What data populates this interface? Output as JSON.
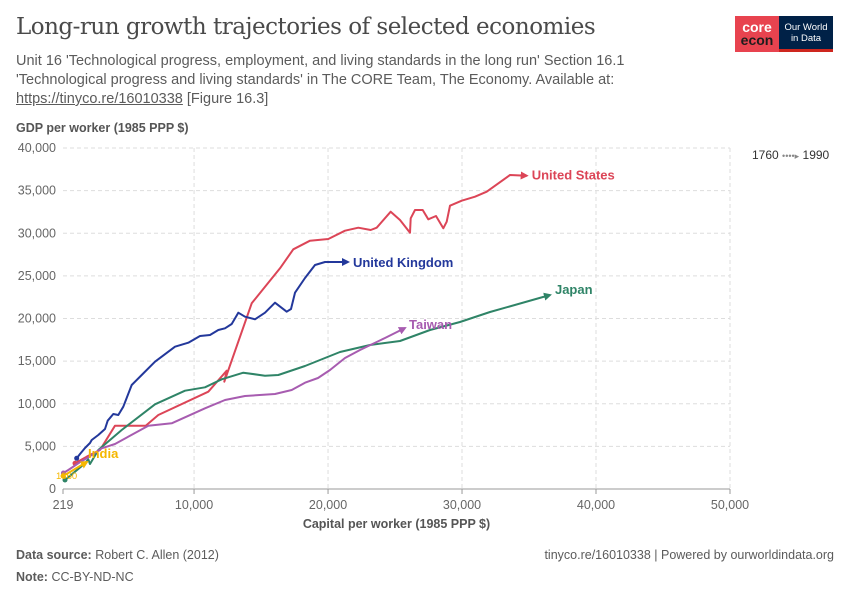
{
  "header": {
    "title": "Long-run growth trajectories of selected economies",
    "subtitle": "Unit 16 'Technological progress, employment, and living standards in the long run' Section 16.1 'Technological progress and living standards' in The CORE Team, The Economy. Available at:",
    "link": "https://tinyco.re/16010338",
    "figure": "[Figure 16.3]"
  },
  "logo": {
    "core_top": "core",
    "core_bottom": "econ",
    "owid_top": "Our World",
    "owid_bottom": "in Data"
  },
  "timeline": {
    "start": "1760",
    "end": "1990"
  },
  "footer": {
    "source_label": "Data source:",
    "source": "Robert C. Allen (2012)",
    "note_label": "Note:",
    "note": "CC-BY-ND-NC",
    "right": "tinyco.re/16010338 | Powered by ourworldindata.org"
  },
  "chart_data": {
    "type": "line",
    "title": "Long-run growth trajectories of selected economies",
    "xlabel": "Capital per worker (1985 PPP $)",
    "ylabel": "GDP per worker (1985 PPP $)",
    "xlim": [
      219,
      50000
    ],
    "ylim": [
      0,
      40000
    ],
    "xticks": [
      219,
      10000,
      20000,
      30000,
      40000,
      50000
    ],
    "xtick_labels": [
      "219",
      "10,000",
      "20,000",
      "30,000",
      "40,000",
      "50,000"
    ],
    "yticks": [
      0,
      5000,
      10000,
      15000,
      20000,
      25000,
      30000,
      35000,
      40000
    ],
    "ytick_labels": [
      "0",
      "5,000",
      "10,000",
      "15,000",
      "20,000",
      "25,000",
      "30,000",
      "35,000",
      "40,000"
    ],
    "grid": true,
    "start_label": "1860",
    "series": [
      {
        "name": "United States",
        "color": "#dc4557",
        "points": [
          [
            1115,
            3015
          ],
          [
            1988,
            3789
          ],
          [
            2980,
            4575
          ],
          [
            4100,
            7425
          ],
          [
            6391,
            7425
          ],
          [
            7331,
            8680
          ],
          [
            11063,
            11413
          ],
          [
            12436,
            13877
          ],
          [
            12257,
            12587
          ],
          [
            14302,
            21783
          ],
          [
            16414,
            25888
          ],
          [
            17407,
            28117
          ],
          [
            18653,
            29126
          ],
          [
            20018,
            29325
          ],
          [
            21265,
            30299
          ],
          [
            22257,
            30651
          ],
          [
            23182,
            30381
          ],
          [
            23630,
            30651
          ],
          [
            24675,
            32528
          ],
          [
            25369,
            31554
          ],
          [
            26115,
            30064
          ],
          [
            26167,
            31753
          ],
          [
            26488,
            32727
          ],
          [
            27063,
            32727
          ],
          [
            27481,
            31636
          ],
          [
            28056,
            32023
          ],
          [
            28600,
            30581
          ],
          [
            28855,
            31354
          ],
          [
            29101,
            33232
          ],
          [
            29974,
            33818
          ],
          [
            30967,
            34287
          ],
          [
            31840,
            34874
          ],
          [
            33579,
            36832
          ],
          [
            34826,
            36750
          ]
        ]
      },
      {
        "name": "United Kingdom",
        "color": "#23389b",
        "points": [
          [
            1240,
            3600
          ],
          [
            1488,
            4106
          ],
          [
            1861,
            4810
          ],
          [
            2234,
            5396
          ],
          [
            2361,
            5748
          ],
          [
            2853,
            6334
          ],
          [
            3353,
            7038
          ],
          [
            3555,
            8012
          ],
          [
            3973,
            8798
          ],
          [
            4346,
            8680
          ],
          [
            4719,
            9654
          ],
          [
            5346,
            12199
          ],
          [
            6092,
            13372
          ],
          [
            7085,
            14932
          ],
          [
            8578,
            16692
          ],
          [
            9570,
            17161
          ],
          [
            10443,
            17947
          ],
          [
            11190,
            18064
          ],
          [
            11809,
            18651
          ],
          [
            12309,
            18850
          ],
          [
            12809,
            19355
          ],
          [
            13302,
            20680
          ],
          [
            13802,
            20211
          ],
          [
            14548,
            19906
          ],
          [
            15294,
            20680
          ],
          [
            16041,
            21853
          ],
          [
            16914,
            20797
          ],
          [
            17235,
            21114
          ],
          [
            17533,
            23026
          ],
          [
            18280,
            24751
          ],
          [
            19026,
            26276
          ],
          [
            19772,
            26627
          ],
          [
            21488,
            26627
          ]
        ]
      },
      {
        "name": "Japan",
        "color": "#2f8467",
        "points": [
          [
            368,
            1056
          ],
          [
            1115,
            2029
          ],
          [
            1861,
            3015
          ],
          [
            2107,
            3484
          ],
          [
            2234,
            2933
          ],
          [
            2853,
            4575
          ],
          [
            4600,
            6921
          ],
          [
            7085,
            9935
          ],
          [
            9324,
            11531
          ],
          [
            10816,
            11930
          ],
          [
            12063,
            12868
          ],
          [
            13675,
            13642
          ],
          [
            15294,
            13290
          ],
          [
            16287,
            13372
          ],
          [
            18280,
            14428
          ],
          [
            20892,
            16070
          ],
          [
            23131,
            16891
          ],
          [
            25369,
            17360
          ],
          [
            27608,
            18651
          ],
          [
            29847,
            19590
          ],
          [
            32086,
            20762
          ],
          [
            36564,
            22756
          ]
        ]
      },
      {
        "name": "Taiwan",
        "color": "#a75cb0",
        "points": [
          [
            250,
            1877
          ],
          [
            615,
            2229
          ],
          [
            1361,
            3015
          ],
          [
            2107,
            3718
          ],
          [
            3107,
            4774
          ],
          [
            4100,
            5279
          ],
          [
            6585,
            7425
          ],
          [
            8331,
            7707
          ],
          [
            10816,
            9466
          ],
          [
            12309,
            10440
          ],
          [
            13801,
            10909
          ],
          [
            16041,
            11144
          ],
          [
            17287,
            11613
          ],
          [
            18280,
            12469
          ],
          [
            19250,
            13020
          ],
          [
            20146,
            13959
          ],
          [
            21265,
            15366
          ],
          [
            22385,
            16305
          ],
          [
            24251,
            17712
          ],
          [
            25743,
            18885
          ]
        ]
      },
      {
        "name": "India",
        "color": "#f5b700",
        "points": [
          [
            219,
            1525
          ],
          [
            741,
            1994
          ],
          [
            1488,
            2698
          ],
          [
            2010,
            3167
          ]
        ]
      }
    ]
  }
}
